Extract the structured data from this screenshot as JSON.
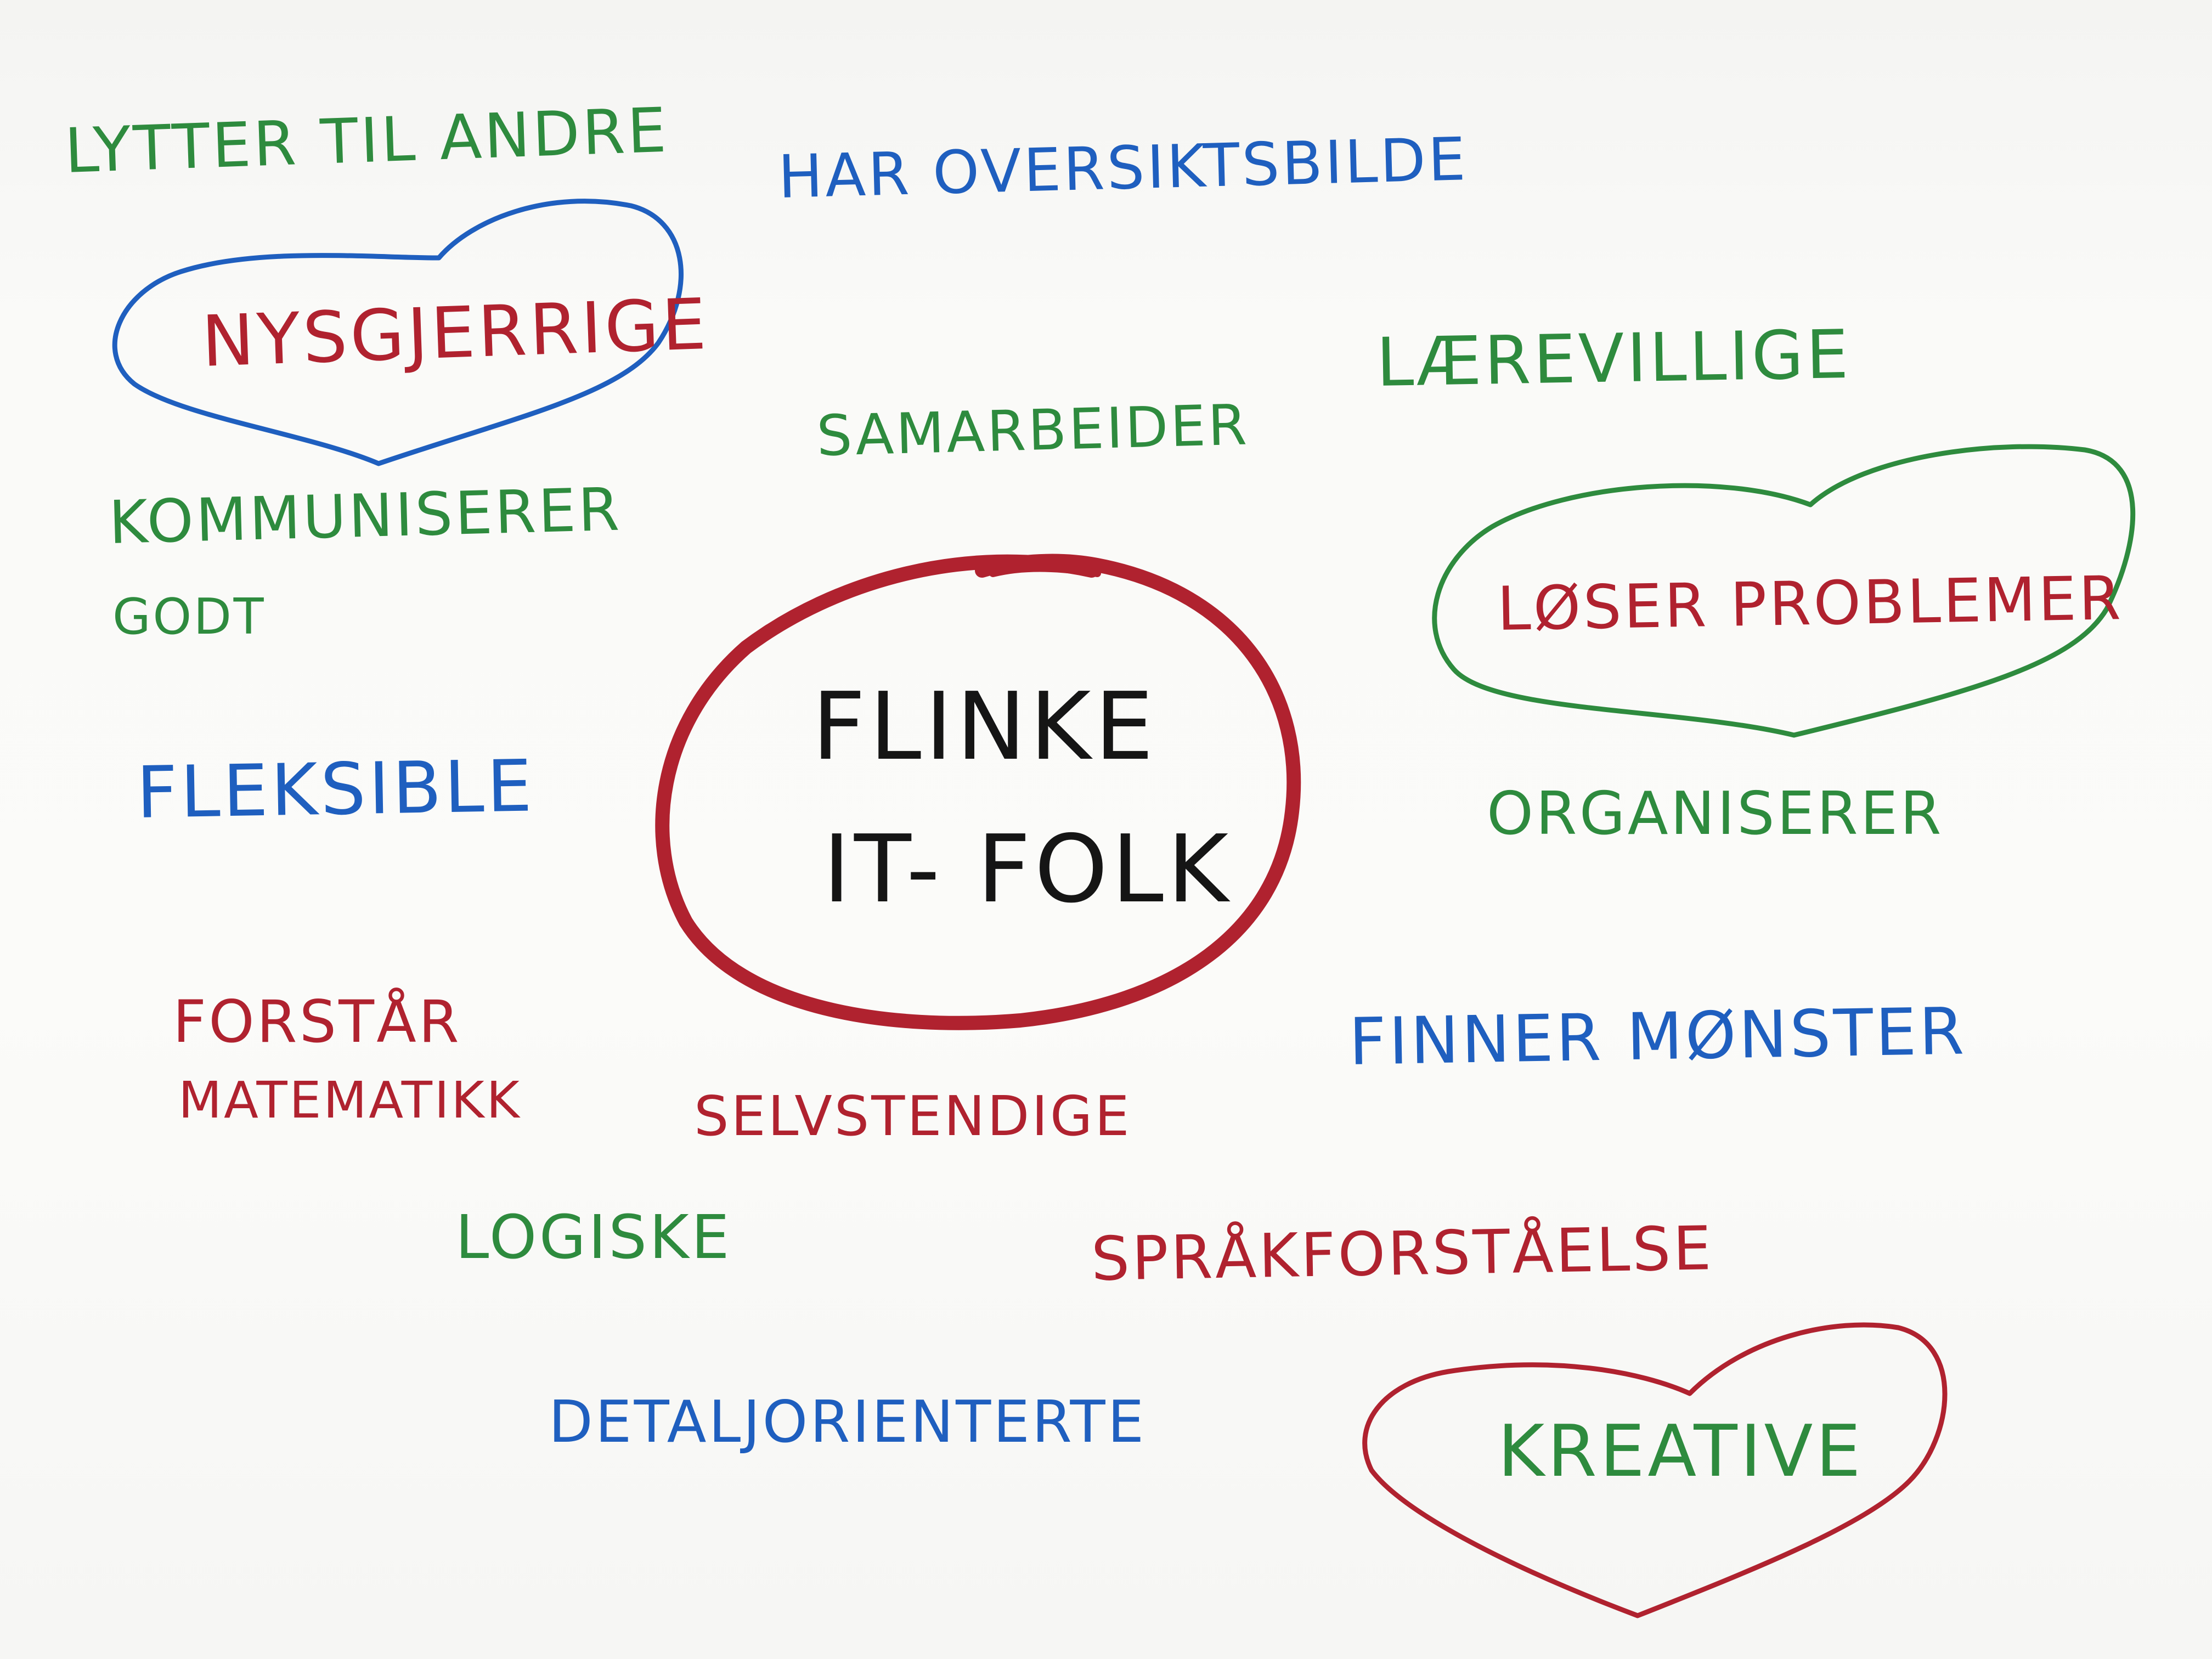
{
  "center": {
    "line1": "FLINKE",
    "line2": "IT- FOLK"
  },
  "words": {
    "lytter": "LYTTER TIL ANDRE",
    "oversikt": "HAR OVERSIKTSBILDE",
    "nysgjerrige": "NYSGJERRIGE",
    "laerevillige": "LÆREVILLIGE",
    "samarbeider": "SAMARBEIDER",
    "kommuniserer_1": "KOMMUNISERER",
    "kommuniserer_2": "GODT",
    "loser": "LØSER PROBLEMER",
    "fleksible": "FLEKSIBLE",
    "organiserer": "ORGANISERER",
    "forstar_1": "FORSTÅR",
    "forstar_2": "MATEMATIKK",
    "finner": "FINNER  MØNSTER",
    "selvstendige": "SELVSTENDIGE",
    "logiske": "LOGISKE",
    "sprak": "SPRÅKFORSTÅELSE",
    "detalj": "DETALJORIENTERTE",
    "kreative": "KREATIVE"
  },
  "colors": {
    "green": "#2e8b3e",
    "blue": "#1f5fbf",
    "red": "#b0222f",
    "black": "#151515"
  }
}
